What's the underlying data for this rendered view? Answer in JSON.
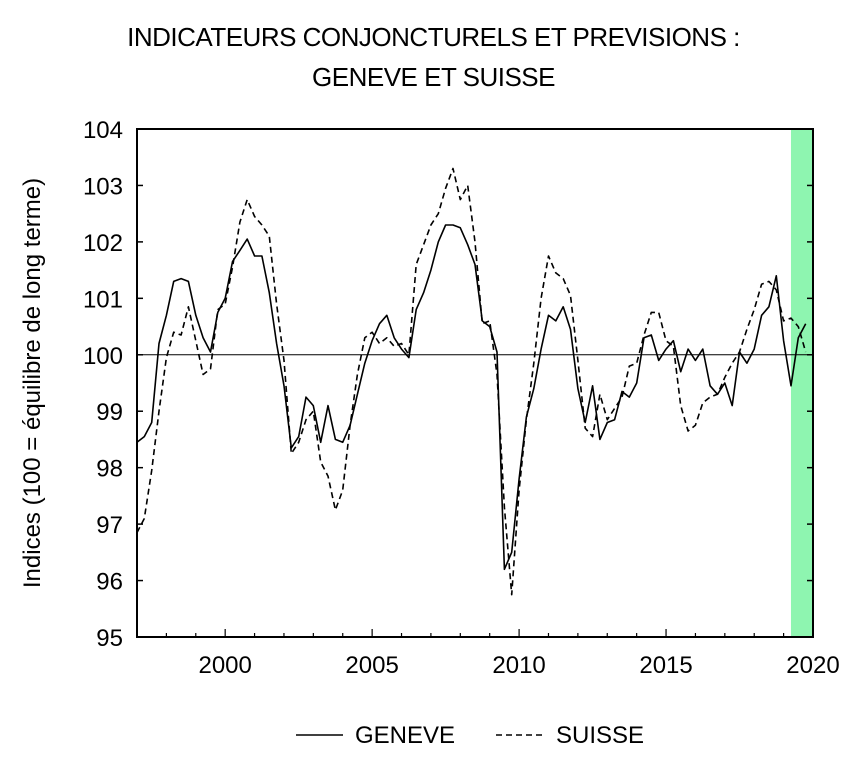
{
  "chart_data": {
    "type": "line",
    "title": "INDICATEURS CONJONCTURELS ET PREVISIONS :",
    "subtitle": "GENEVE ET SUISSE",
    "xlabel": "",
    "ylabel": "Indices (100 = équilibre de long terme)",
    "xlim": [
      1997.0,
      2020.0
    ],
    "ylim": [
      95,
      104
    ],
    "x_ticks": [
      2000,
      2005,
      2010,
      2015,
      2020
    ],
    "y_ticks": [
      95,
      96,
      97,
      98,
      99,
      100,
      101,
      102,
      103,
      104
    ],
    "reference_line": 100,
    "forecast_band": {
      "from": 2019.25,
      "to": 2020.0,
      "color": "#8ef5b0"
    },
    "legend_position": "bottom-center",
    "series": [
      {
        "name": "GENEVE",
        "style": "solid",
        "color": "#000000",
        "x": [
          1997.0,
          1997.25,
          1997.5,
          1997.75,
          1998.0,
          1998.25,
          1998.5,
          1998.75,
          1999.0,
          1999.25,
          1999.5,
          1999.75,
          2000.0,
          2000.25,
          2000.5,
          2000.75,
          2001.0,
          2001.25,
          2001.5,
          2001.75,
          2002.0,
          2002.25,
          2002.5,
          2002.75,
          2003.0,
          2003.25,
          2003.5,
          2003.75,
          2004.0,
          2004.25,
          2004.5,
          2004.75,
          2005.0,
          2005.25,
          2005.5,
          2005.75,
          2006.0,
          2006.25,
          2006.5,
          2006.75,
          2007.0,
          2007.25,
          2007.5,
          2007.75,
          2008.0,
          2008.25,
          2008.5,
          2008.75,
          2009.0,
          2009.25,
          2009.5,
          2009.75,
          2010.0,
          2010.25,
          2010.5,
          2010.75,
          2011.0,
          2011.25,
          2011.5,
          2011.75,
          2012.0,
          2012.25,
          2012.5,
          2012.75,
          2013.0,
          2013.25,
          2013.5,
          2013.75,
          2014.0,
          2014.25,
          2014.5,
          2014.75,
          2015.0,
          2015.25,
          2015.5,
          2015.75,
          2016.0,
          2016.25,
          2016.5,
          2016.75,
          2017.0,
          2017.25,
          2017.5,
          2017.75,
          2018.0,
          2018.25,
          2018.5,
          2018.75,
          2019.0,
          2019.25,
          2019.5,
          2019.75
        ],
        "y": [
          98.45,
          98.55,
          98.8,
          100.2,
          100.7,
          101.3,
          101.35,
          101.3,
          100.7,
          100.3,
          100.05,
          100.75,
          101.0,
          101.65,
          101.85,
          102.05,
          101.75,
          101.75,
          101.1,
          100.2,
          99.45,
          98.35,
          98.55,
          99.25,
          99.1,
          98.45,
          99.1,
          98.5,
          98.45,
          98.75,
          99.3,
          99.85,
          100.25,
          100.55,
          100.7,
          100.3,
          100.1,
          99.95,
          100.8,
          101.1,
          101.5,
          102.0,
          102.3,
          102.3,
          102.25,
          101.95,
          101.6,
          100.6,
          100.5,
          100.05,
          96.2,
          96.5,
          97.8,
          98.9,
          99.4,
          100.1,
          100.7,
          100.6,
          100.85,
          100.45,
          99.4,
          98.8,
          99.45,
          98.5,
          98.8,
          98.85,
          99.35,
          99.25,
          99.5,
          100.3,
          100.35,
          99.9,
          100.1,
          100.25,
          99.7,
          100.1,
          99.9,
          100.1,
          99.45,
          99.3,
          99.5,
          99.1,
          100.05,
          99.85,
          100.1,
          100.7,
          100.85,
          101.4,
          100.25,
          99.45,
          100.3,
          100.55
        ]
      },
      {
        "name": "SUISSE",
        "style": "dashed",
        "color": "#000000",
        "x": [
          1997.0,
          1997.25,
          1997.5,
          1997.75,
          1998.0,
          1998.25,
          1998.5,
          1998.75,
          1999.0,
          1999.25,
          1999.5,
          1999.75,
          2000.0,
          2000.25,
          2000.5,
          2000.75,
          2001.0,
          2001.25,
          2001.5,
          2001.75,
          2002.0,
          2002.25,
          2002.5,
          2002.75,
          2003.0,
          2003.25,
          2003.5,
          2003.75,
          2004.0,
          2004.25,
          2004.5,
          2004.75,
          2005.0,
          2005.25,
          2005.5,
          2005.75,
          2006.0,
          2006.25,
          2006.5,
          2006.75,
          2007.0,
          2007.25,
          2007.5,
          2007.75,
          2008.0,
          2008.25,
          2008.5,
          2008.75,
          2009.0,
          2009.25,
          2009.5,
          2009.75,
          2010.0,
          2010.25,
          2010.5,
          2010.75,
          2011.0,
          2011.25,
          2011.5,
          2011.75,
          2012.0,
          2012.25,
          2012.5,
          2012.75,
          2013.0,
          2013.25,
          2013.5,
          2013.75,
          2014.0,
          2014.25,
          2014.5,
          2014.75,
          2015.0,
          2015.25,
          2015.5,
          2015.75,
          2016.0,
          2016.25,
          2016.5,
          2016.75,
          2017.0,
          2017.25,
          2017.5,
          2017.75,
          2018.0,
          2018.25,
          2018.5,
          2018.75,
          2019.0,
          2019.25,
          2019.5,
          2019.75
        ],
        "y": [
          96.85,
          97.1,
          97.95,
          99.0,
          99.95,
          100.4,
          100.35,
          100.85,
          100.25,
          99.65,
          99.75,
          100.8,
          100.9,
          101.55,
          102.35,
          102.75,
          102.45,
          102.3,
          102.1,
          100.9,
          99.9,
          98.25,
          98.45,
          98.85,
          99.0,
          98.1,
          97.85,
          97.25,
          97.6,
          98.75,
          99.65,
          100.3,
          100.4,
          100.2,
          100.3,
          100.15,
          100.2,
          100.0,
          101.6,
          101.95,
          102.3,
          102.5,
          102.95,
          103.3,
          102.75,
          103.0,
          102.0,
          100.55,
          100.6,
          99.65,
          97.3,
          95.75,
          97.6,
          98.85,
          99.85,
          101.0,
          101.75,
          101.45,
          101.35,
          101.05,
          99.9,
          98.7,
          98.55,
          99.3,
          98.85,
          99.05,
          99.25,
          99.8,
          99.85,
          100.35,
          100.75,
          100.75,
          100.25,
          100.15,
          99.1,
          98.65,
          98.75,
          99.15,
          99.25,
          99.3,
          99.6,
          99.85,
          100.05,
          100.45,
          100.8,
          101.25,
          101.3,
          101.15,
          100.6,
          100.65,
          100.5,
          100.05
        ]
      }
    ]
  }
}
